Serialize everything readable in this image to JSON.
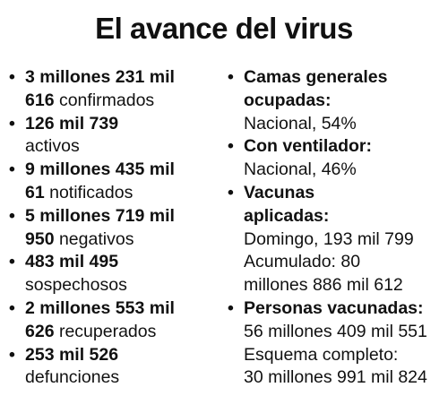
{
  "title": "El avance del virus",
  "left": [
    {
      "bold": "3 millones 231 mil",
      "bold2": "616",
      "rest": " confirmados"
    },
    {
      "bold": "126 mil 739",
      "rest_line": "activos"
    },
    {
      "bold": "9 millones 435 mil",
      "bold2": "61",
      "rest": " notificados"
    },
    {
      "bold": "5 millones 719 mil",
      "bold2": "950",
      "rest": " negativos"
    },
    {
      "bold": "483 mil 495",
      "rest_line": "sospechosos"
    },
    {
      "bold": "2 millones 553 mil",
      "bold2": "626",
      "rest": " recuperados"
    },
    {
      "bold": "253 mil 526",
      "rest_line": "defunciones"
    }
  ],
  "right": {
    "camas": {
      "h1": "Camas generales",
      "h2": "ocupadas:",
      "v1": "Nacional, 54%"
    },
    "ventilador": {
      "h1": "Con ventilador:",
      "v1": "Nacional, 46%"
    },
    "vacunas": {
      "h1": "Vacunas",
      "h2": "aplicadas:",
      "v1": "Domingo, 193 mil 799",
      "v2": "Acumulado: 80",
      "v3": "millones 886 mil 612"
    },
    "personas": {
      "h1": "Personas vacunadas:",
      "v1": "56 millones 409 mil 551",
      "v2": "Esquema completo:",
      "v3": "30 millones 991 mil 824"
    }
  }
}
